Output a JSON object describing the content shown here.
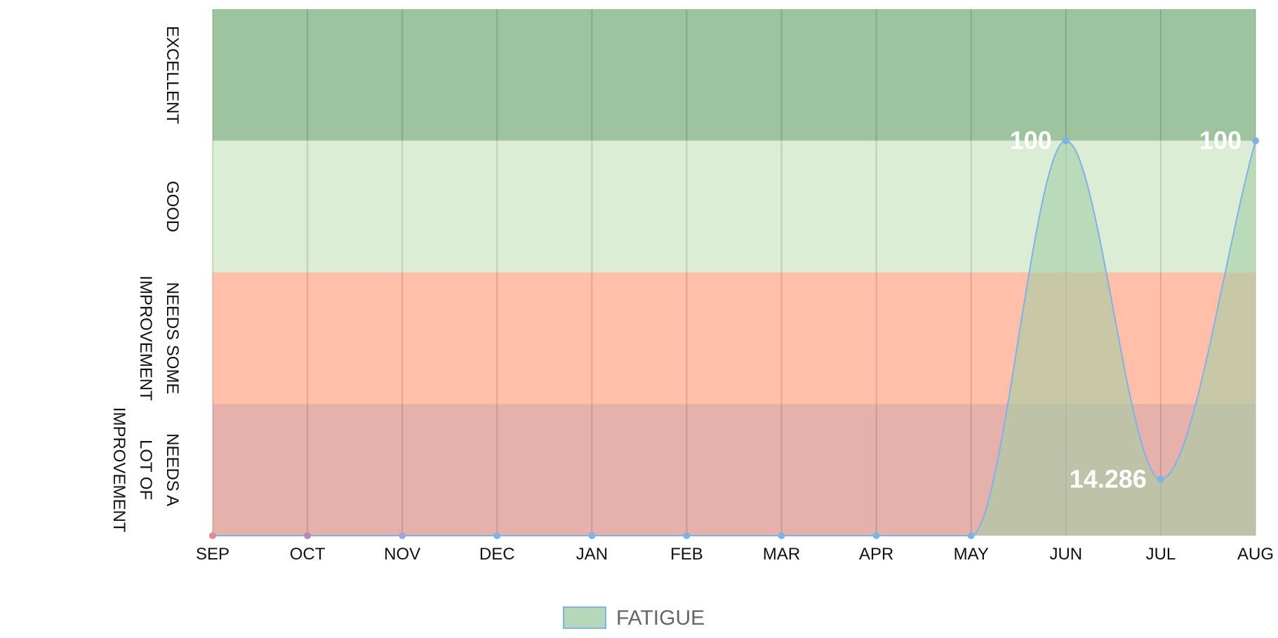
{
  "chart_data": {
    "type": "area",
    "categories": [
      "SEP",
      "OCT",
      "NOV",
      "DEC",
      "JAN",
      "FEB",
      "MAR",
      "APR",
      "MAY",
      "JUN",
      "JUL",
      "AUG"
    ],
    "series": [
      {
        "name": "FATIGUE",
        "values": [
          0,
          0,
          0,
          0,
          0,
          0,
          0,
          0,
          0,
          100,
          14.286,
          100
        ],
        "data_labels": [
          "",
          "",
          "",
          "",
          "",
          "",
          "",
          "",
          "",
          "100",
          "14.286",
          "100"
        ],
        "fill_color": "#a3cfa6",
        "line_color": "#7fb2e6"
      }
    ],
    "ylim": [
      0,
      133.33
    ],
    "bands": [
      {
        "label_lines": [
          "EXCELLENT"
        ],
        "from": 100,
        "to": 133.33,
        "color": "#9dc39f"
      },
      {
        "label_lines": [
          "GOOD"
        ],
        "from": 66.67,
        "to": 100,
        "color": "#dbedd4"
      },
      {
        "label_lines": [
          "NEEDS SOME",
          "IMPROVEMENT"
        ],
        "from": 33.33,
        "to": 66.67,
        "color": "#ffbfa8"
      },
      {
        "label_lines": [
          "NEEDS A",
          "LOT OF",
          "IMPROVEMENT"
        ],
        "from": 0,
        "to": 33.33,
        "color": "#e6b1ab"
      }
    ],
    "point_colors": [
      "#e08a96",
      "#b48ab8",
      "#9fa6d8",
      "#7fb2e6",
      "#7fb2e6",
      "#7fb2e6",
      "#7fb2e6",
      "#7fb2e6",
      "#7fb2e6",
      "#7fb2e6",
      "#7fb2e6",
      "#7fb2e6"
    ],
    "grid": true,
    "legend_position": "bottom",
    "legend": [
      {
        "label": "FATIGUE",
        "color": "#a3cfa6"
      }
    ]
  }
}
